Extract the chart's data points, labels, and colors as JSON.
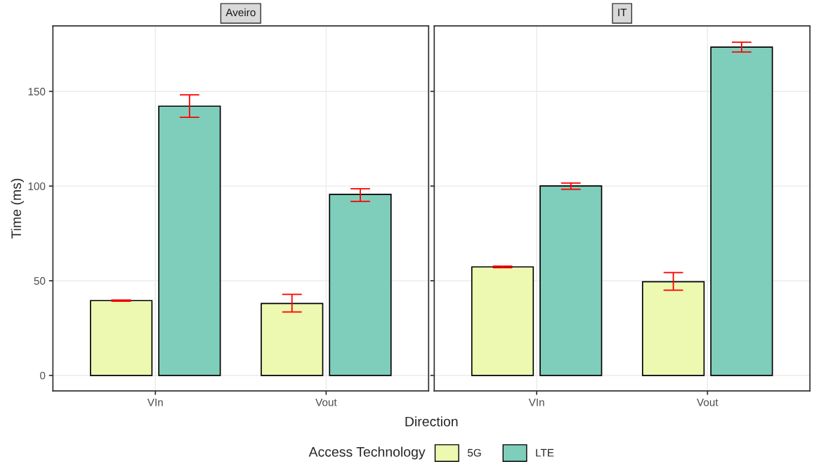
{
  "chart_data": [
    {
      "type": "bar",
      "title": "Aveiro",
      "xlabel": "Direction",
      "ylabel": "Time (ms)",
      "legend_title": "Access Technology",
      "legend": "bottom",
      "grid": true,
      "categories": [
        "VIn",
        "Vout"
      ],
      "ylim": [
        -8.2,
        184.6
      ],
      "yticks": [
        0,
        50,
        100,
        150
      ],
      "series": [
        {
          "name": "5G",
          "color": "#edf8b1",
          "values": [
            39.5,
            38.0
          ],
          "errors": [
            [
              39.2,
              39.8
            ],
            [
              33.5,
              42.8
            ]
          ]
        },
        {
          "name": "LTE",
          "color": "#7fcdbb",
          "values": [
            142.2,
            95.6
          ],
          "errors": [
            [
              136.3,
              148.2
            ],
            [
              91.9,
              98.6
            ]
          ]
        }
      ]
    },
    {
      "type": "bar",
      "title": "IT",
      "grid": true,
      "tick_labels": "x",
      "categories": [
        "VIn",
        "Vout"
      ],
      "ylim": [
        -8.2,
        184.6
      ],
      "yticks": [
        0,
        50,
        100,
        150
      ],
      "series": [
        {
          "color": "#edf8b1",
          "values": [
            57.3,
            49.5
          ],
          "errors": [
            [
              56.9,
              57.7
            ],
            [
              45.0,
              54.3
            ]
          ]
        },
        {
          "color": "#7fcdbb",
          "values": [
            100.1,
            173.4
          ],
          "errors": [
            [
              98.3,
              101.6
            ],
            [
              170.8,
              176.0
            ]
          ]
        }
      ]
    }
  ]
}
